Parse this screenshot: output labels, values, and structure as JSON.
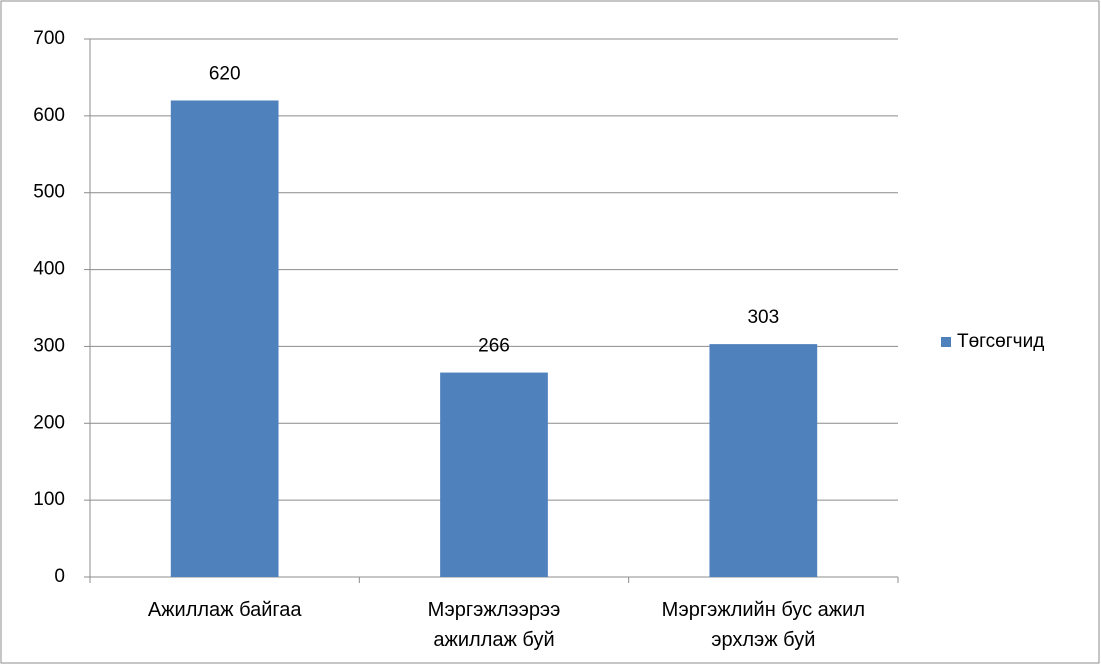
{
  "chart_data": {
    "type": "bar",
    "categories": [
      "Ажиллаж байгаа",
      "Мэргэжлээрээ ажиллаж буй",
      "Мэргэжлийн бус ажил эрхлэж буй"
    ],
    "series": [
      {
        "name": "Төгсөгчид",
        "color": "#4f81bd",
        "values": [
          620,
          266,
          303
        ]
      }
    ],
    "ylim": [
      0,
      700
    ],
    "yticks": [
      0,
      100,
      200,
      300,
      400,
      500,
      600,
      700
    ],
    "grid": true,
    "legend": "right",
    "data_labels": true
  }
}
